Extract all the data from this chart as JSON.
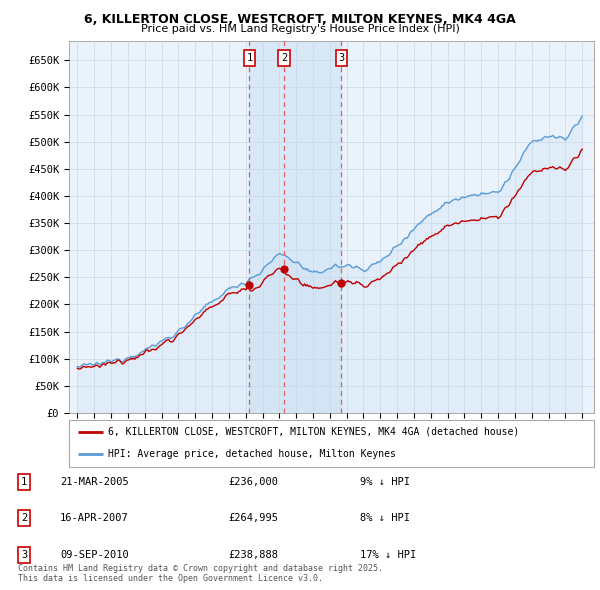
{
  "title1": "6, KILLERTON CLOSE, WESTCROFT, MILTON KEYNES, MK4 4GA",
  "title2": "Price paid vs. HM Land Registry's House Price Index (HPI)",
  "yticks": [
    0,
    50000,
    100000,
    150000,
    200000,
    250000,
    300000,
    350000,
    400000,
    450000,
    500000,
    550000,
    600000,
    650000
  ],
  "ytick_labels": [
    "£0",
    "£50K",
    "£100K",
    "£150K",
    "£200K",
    "£250K",
    "£300K",
    "£350K",
    "£400K",
    "£450K",
    "£500K",
    "£550K",
    "£600K",
    "£650K"
  ],
  "xlim_start": 1994.5,
  "xlim_end": 2025.7,
  "ylim": [
    0,
    685000
  ],
  "hpi_color": "#5b9bd5",
  "hpi_fill_color": "#daeaf7",
  "price_color": "#c00000",
  "transaction_line_color": "#e06060",
  "transactions": [
    {
      "date": "21-MAR-2005",
      "price": 236000,
      "pct": "9%",
      "label": "1",
      "year": 2005.22
    },
    {
      "date": "16-APR-2007",
      "price": 264995,
      "pct": "8%",
      "label": "2",
      "year": 2007.29
    },
    {
      "date": "09-SEP-2010",
      "price": 238888,
      "pct": "17%",
      "label": "3",
      "year": 2010.69
    }
  ],
  "legend_line1": "6, KILLERTON CLOSE, WESTCROFT, MILTON KEYNES, MK4 4GA (detached house)",
  "legend_line2": "HPI: Average price, detached house, Milton Keynes",
  "footnote": "Contains HM Land Registry data © Crown copyright and database right 2025.\nThis data is licensed under the Open Government Licence v3.0.",
  "background_color": "#ffffff",
  "chart_bg_color": "#eaf3fb",
  "grid_color": "#c8d8e8"
}
